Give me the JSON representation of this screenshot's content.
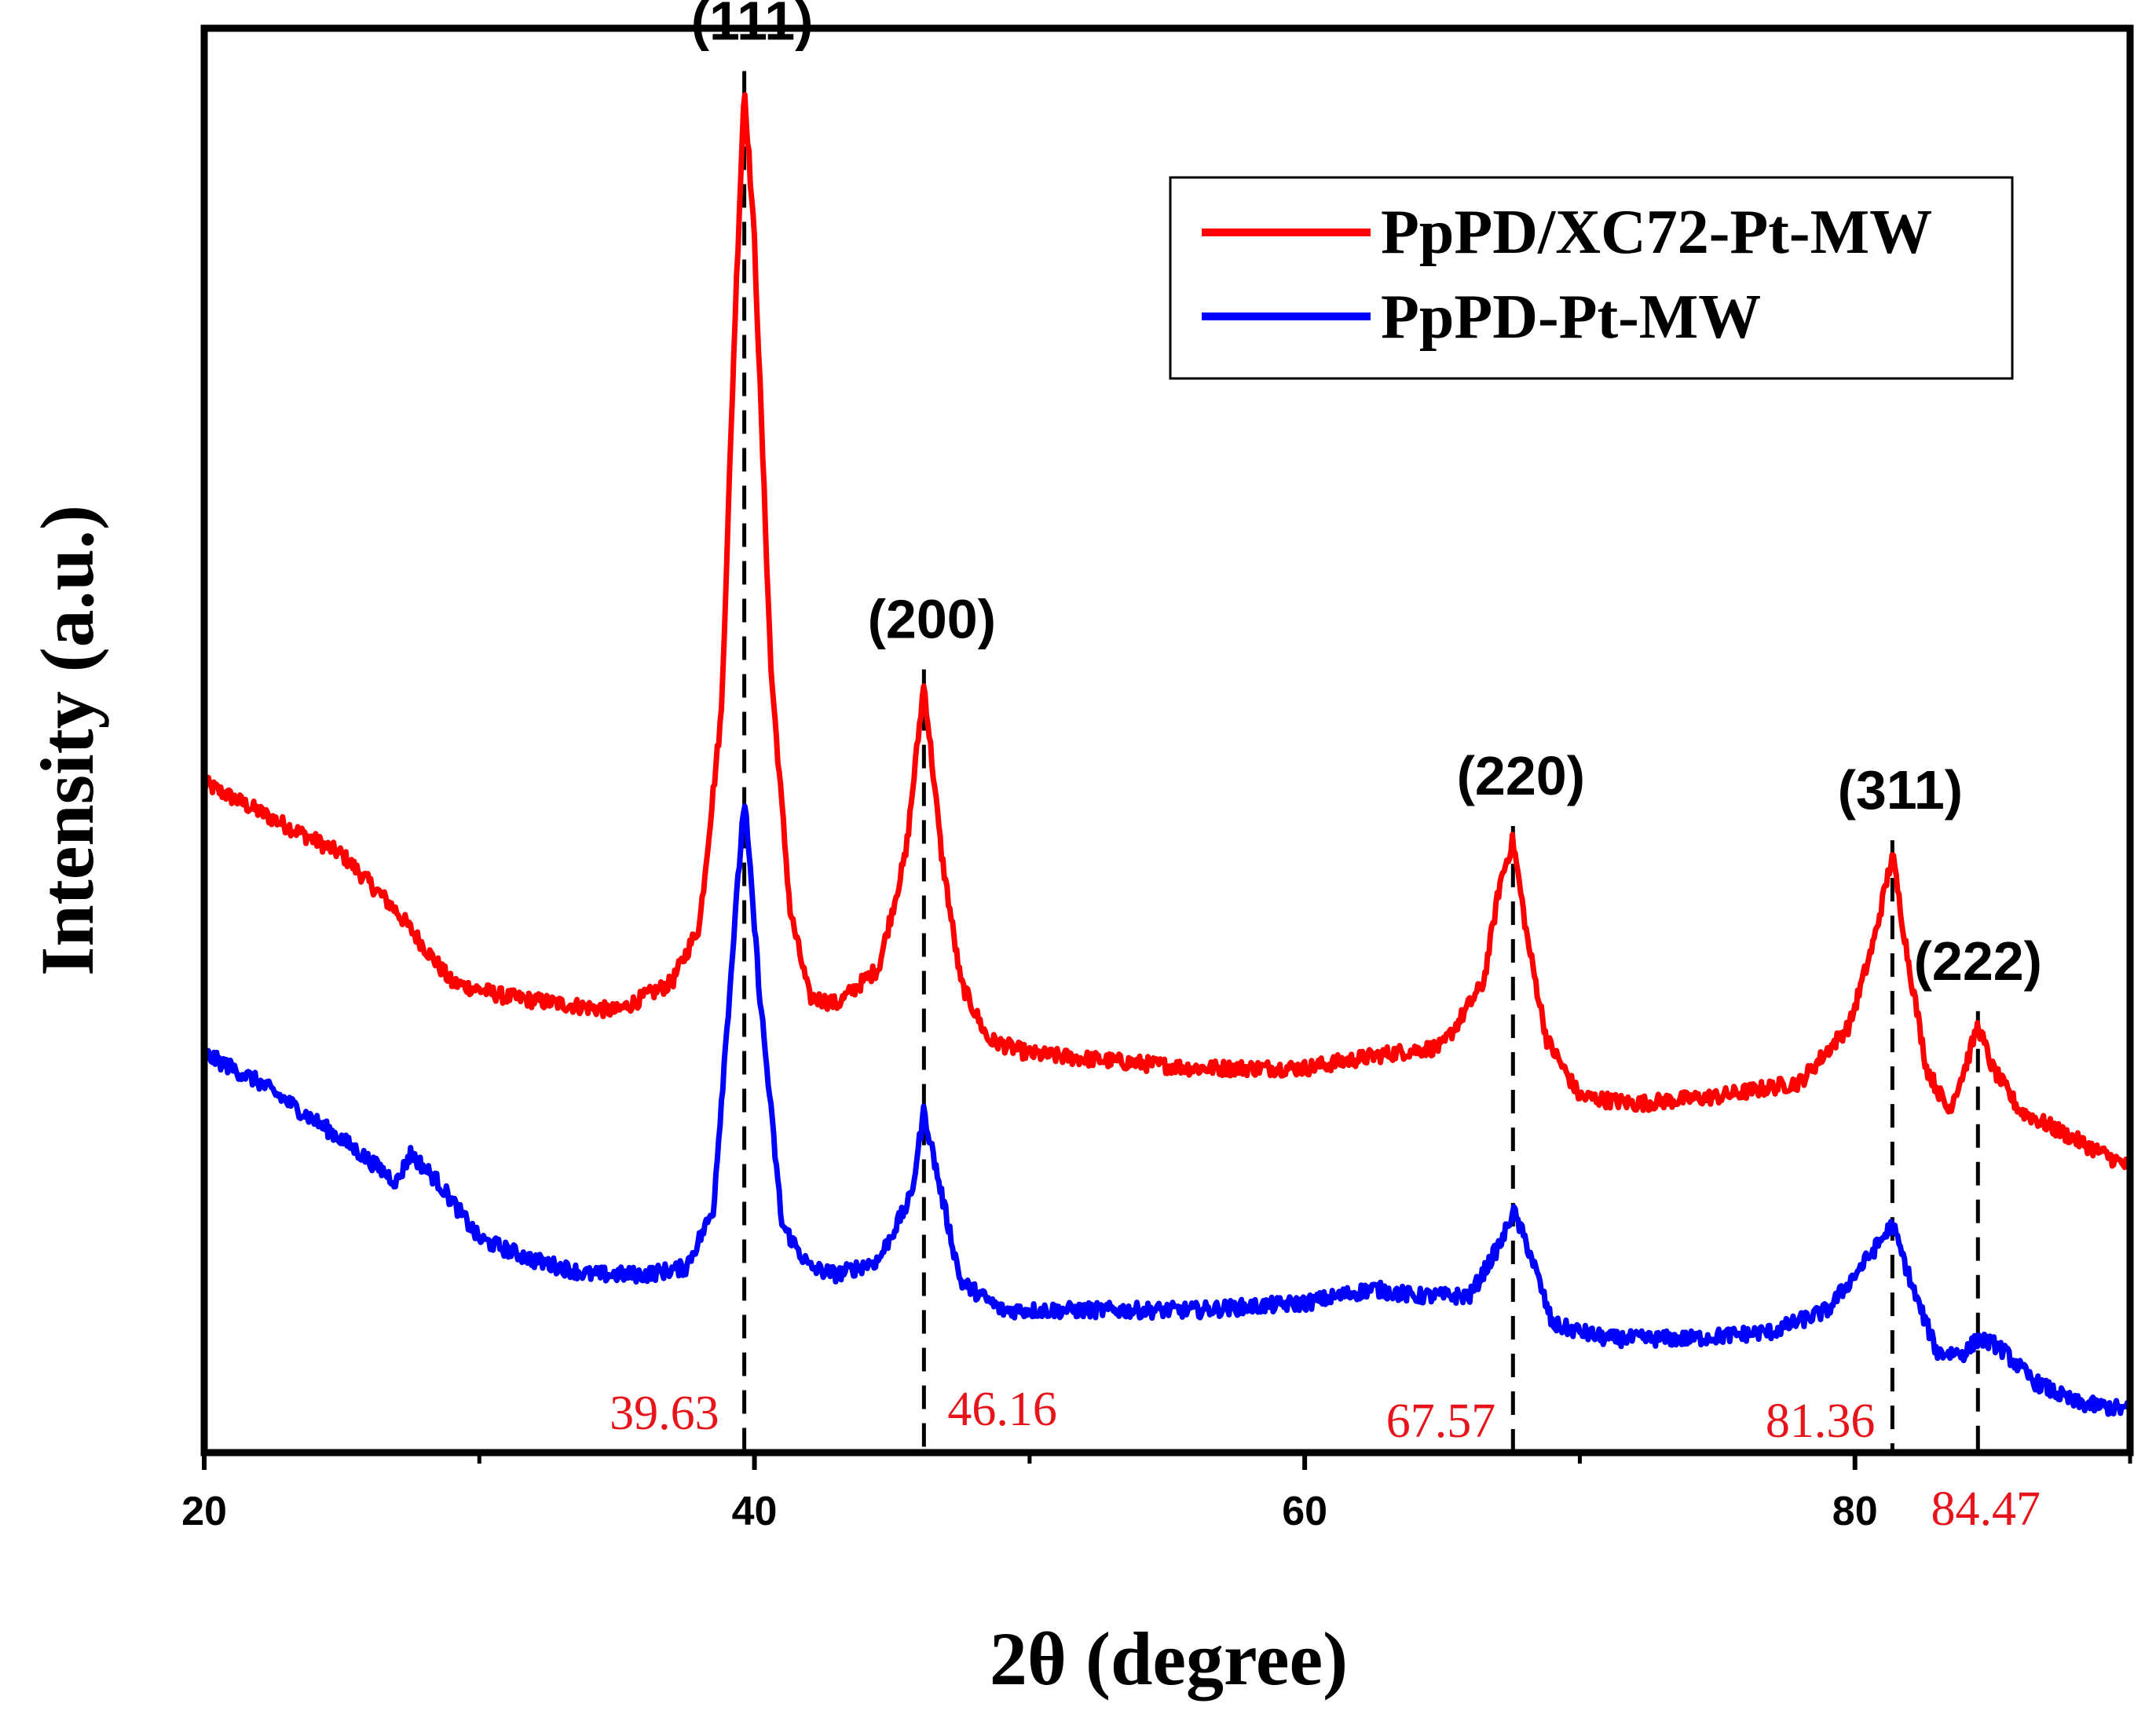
{
  "chart_data": {
    "type": "line",
    "xlabel": "2θ (degree)",
    "ylabel": "Intensity (a.u.)",
    "xlim": [
      20,
      90
    ],
    "ylim": [
      0,
      100
    ],
    "x_ticks": [
      20,
      40,
      60,
      80
    ],
    "x_minor_ticks": [
      30,
      50,
      70,
      90
    ],
    "grid": false,
    "legend_position": "top-right",
    "series": [
      {
        "name": "PpPD/XC72-Pt-MW",
        "color": "#ff0000",
        "x": [
          20,
          22,
          25,
          27,
          29,
          31,
          33,
          35,
          37,
          38,
          38.8,
          39.3,
          39.63,
          40.0,
          40.6,
          41.3,
          42,
          43,
          44.5,
          45.5,
          46.16,
          46.8,
          47.5,
          48.5,
          50,
          53,
          56,
          60,
          63,
          65,
          66.5,
          67.1,
          67.57,
          68.1,
          68.8,
          70,
          72,
          75,
          78,
          79.8,
          80.7,
          81.36,
          81.9,
          82.6,
          83.4,
          84.0,
          84.47,
          85.0,
          86,
          88,
          90
        ],
        "values": [
          47,
          45,
          42,
          38,
          33,
          32,
          31.5,
          31,
          33,
          37,
          52,
          80,
          96,
          85,
          55,
          38,
          32,
          31.5,
          34,
          42,
          54,
          42,
          33,
          29,
          28,
          27.5,
          27,
          27,
          28,
          28.5,
          33,
          40,
          43,
          36,
          29,
          25,
          24.5,
          25,
          26,
          30,
          36,
          42,
          35,
          27,
          24,
          27,
          30,
          27,
          24,
          22,
          20
        ]
      },
      {
        "name": "PpPD-Pt-MW",
        "color": "#0000ff",
        "x": [
          20,
          22,
          25,
          27,
          27.5,
          28.5,
          30,
          32,
          34,
          36,
          37.5,
          38.5,
          39.2,
          39.63,
          40.2,
          41,
          42,
          43,
          44.5,
          45.7,
          46.16,
          46.7,
          47.5,
          49,
          52,
          56,
          60,
          62.5,
          64,
          66,
          67.2,
          67.57,
          68.2,
          69,
          71,
          74,
          77,
          79,
          80.6,
          81.36,
          82.2,
          83,
          84,
          84.47,
          85.2,
          86.5,
          88,
          90
        ],
        "values": [
          28,
          26,
          22,
          19,
          21,
          19,
          15,
          13.5,
          12.5,
          12.5,
          13,
          17,
          35,
          46,
          32,
          16,
          13,
          12.5,
          13.5,
          18,
          24,
          19,
          12,
          10,
          10,
          10,
          10.5,
          11.5,
          11,
          11,
          15,
          17,
          14,
          9,
          8,
          8,
          8.5,
          10,
          14,
          16,
          11,
          7,
          7,
          8,
          7.5,
          5,
          3.5,
          3
        ]
      }
    ],
    "reference_lines": [
      {
        "label": "(111)",
        "position_label": "39.63",
        "x": 39.63
      },
      {
        "label": "(200)",
        "position_label": "46.16",
        "x": 46.16
      },
      {
        "label": "(220)",
        "position_label": "67.57",
        "x": 67.57
      },
      {
        "label": "(311)",
        "position_label": "81.36",
        "x": 81.36
      },
      {
        "label": "(222)",
        "position_label": "84.47",
        "x": 84.47
      }
    ]
  }
}
